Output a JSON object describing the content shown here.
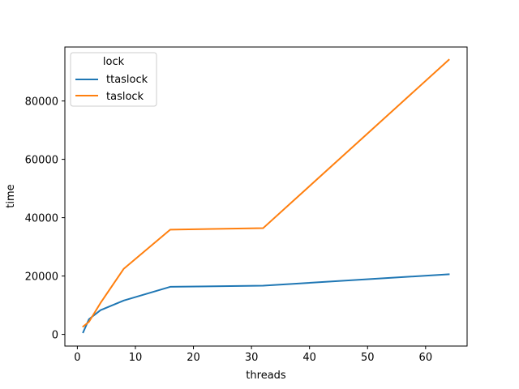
{
  "chart_data": {
    "type": "line",
    "title": "",
    "xlabel": "threads",
    "ylabel": "time",
    "xlim": [
      -2.15,
      67.15
    ],
    "ylim": [
      -4000,
      98500
    ],
    "xticks": [
      0,
      10,
      20,
      30,
      40,
      50,
      60
    ],
    "xtick_labels": [
      "0",
      "10",
      "20",
      "30",
      "40",
      "50",
      "60"
    ],
    "yticks": [
      0,
      20000,
      40000,
      60000,
      80000
    ],
    "ytick_labels": [
      "0",
      "20000",
      "40000",
      "60000",
      "80000"
    ],
    "grid": false,
    "legend": {
      "title": "lock",
      "placement": "top-left"
    },
    "series": [
      {
        "name": "ttaslock",
        "color": "#1f77b4",
        "x": [
          1,
          2,
          4,
          8,
          16,
          32,
          64
        ],
        "y": [
          700,
          5200,
          8300,
          11600,
          16300,
          16700,
          20600
        ]
      },
      {
        "name": "taslock",
        "color": "#ff7f0e",
        "x": [
          1,
          2,
          4,
          8,
          16,
          32,
          64
        ],
        "y": [
          2700,
          4300,
          10800,
          22500,
          35900,
          36400,
          94100
        ]
      }
    ]
  }
}
